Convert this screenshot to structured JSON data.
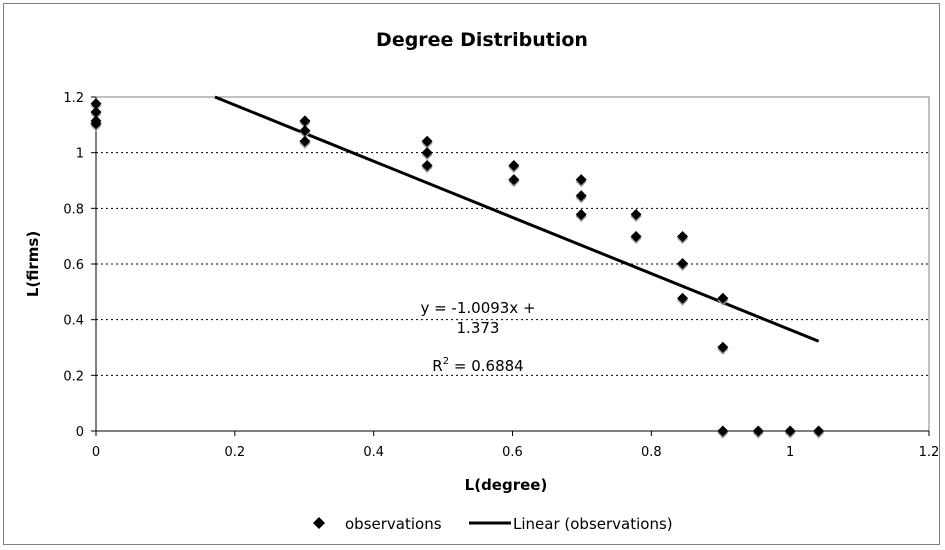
{
  "chart_data": {
    "type": "scatter",
    "title": "Degree Distribution",
    "xlabel": "L(degree)",
    "ylabel": "L(firms)",
    "xlim": [
      0,
      1.2
    ],
    "ylim": [
      0,
      1.2
    ],
    "x_ticks": [
      "0",
      "0.2",
      "0.4",
      "0.6",
      "0.8",
      "1",
      "1.2"
    ],
    "y_ticks": [
      "0",
      "0.2",
      "0.4",
      "0.6",
      "0.8",
      "1",
      "1.2"
    ],
    "grid": "horizontal-dotted",
    "legend_position": "bottom",
    "series": [
      {
        "name": "observations",
        "marker": "diamond",
        "color": "#000000",
        "points": [
          [
            0,
            1.176
          ],
          [
            0,
            1.146
          ],
          [
            0,
            1.114
          ],
          [
            0,
            1.104
          ],
          [
            0.301,
            1.114
          ],
          [
            0.301,
            1.079
          ],
          [
            0.301,
            1.041
          ],
          [
            0.477,
            1.041
          ],
          [
            0.477,
            1.0
          ],
          [
            0.477,
            0.954
          ],
          [
            0.602,
            0.954
          ],
          [
            0.602,
            0.903
          ],
          [
            0.699,
            0.903
          ],
          [
            0.699,
            0.845
          ],
          [
            0.699,
            0.778
          ],
          [
            0.778,
            0.778
          ],
          [
            0.778,
            0.699
          ],
          [
            0.845,
            0.699
          ],
          [
            0.845,
            0.602
          ],
          [
            0.845,
            0.477
          ],
          [
            0.903,
            0.477
          ],
          [
            0.903,
            0.301
          ],
          [
            0.903,
            0
          ],
          [
            0.954,
            0
          ],
          [
            1.0,
            0
          ],
          [
            1.041,
            0
          ]
        ]
      },
      {
        "name": "Linear (observations)",
        "type": "line",
        "color": "#000000",
        "slope": -1.0093,
        "intercept": 1.373,
        "x_range": [
          0,
          1.041
        ]
      }
    ],
    "annotations": {
      "equation_line1": "y = -1.0093x +",
      "equation_line2": "1.373",
      "r2_prefix": "R",
      "r2_sup": "2",
      "r2_value": " = 0.6884"
    }
  }
}
